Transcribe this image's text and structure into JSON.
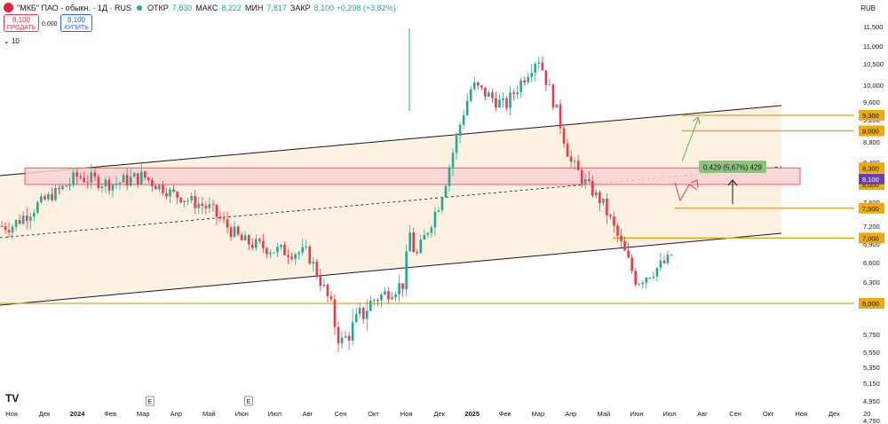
{
  "header": {
    "title": "\"МКБ\" ПАО - обыкн. · 1Д · RUS",
    "ohlc": [
      {
        "k": "ОТКР",
        "v": "7,830"
      },
      {
        "k": "МАКС",
        "v": "8,222"
      },
      {
        "k": "МИН",
        "v": "7,817"
      },
      {
        "k": "ЗАКР",
        "v": "8,100 +0,298 (+3,82%)"
      }
    ],
    "currency": "RUB"
  },
  "trade": {
    "sell_price": "8,100",
    "sell_label": "ПРОДАТЬ",
    "spread": "0,000",
    "buy_price": "8,100",
    "buy_label": "КУПИТЬ"
  },
  "indicator": "10",
  "branding": "TV",
  "colors": {
    "up": "#22ab94",
    "down": "#f23645",
    "channel_fill": "#fdeedd",
    "zone_fill": "#f9d1d3",
    "level": "#e5a21d",
    "label_bg": "#f2a900",
    "last_bg": "#6a3fb0",
    "measure_bg": "#8fc27e",
    "arrow_green": "#4caf50",
    "arrow_red": "#f23645"
  },
  "chart_data": {
    "type": "candlestick",
    "title": "\"МКБ\" ПАО - обыкн. · 1Д · RUS",
    "ylabel": "RUB",
    "ylim": [
      4500,
      12000
    ],
    "y_ticks": [
      11500,
      11000,
      10500,
      10000,
      9600,
      9200,
      8800,
      8400,
      8000,
      7600,
      7200,
      6900,
      6600,
      6300,
      6000,
      5750,
      5550,
      5350,
      5150,
      4950,
      4790
    ],
    "y_tick_labels": [
      "11,500",
      "11,000",
      "10,500",
      "10,000",
      "9,600",
      "9,200",
      "8,800",
      "8,400",
      "8,000",
      "7,600",
      "7,200",
      "6,900",
      "6,600",
      "6,300",
      "6,000",
      "5,750",
      "5,550",
      "5,350",
      "5,150",
      "4,950",
      "4,790"
    ],
    "x_tick_labels": [
      "Ноя",
      "Дек",
      "2024",
      "Фев",
      "Мар",
      "Апр",
      "Май",
      "Июн",
      "Июл",
      "Авг",
      "Сен",
      "Окт",
      "Ноя",
      "Дек",
      "2025",
      "Фев",
      "Мар",
      "Апр",
      "Май",
      "Июн",
      "Июл",
      "Авг",
      "Сен",
      "Окт",
      "Ноя",
      "Дек",
      "20"
    ],
    "events": [
      {
        "month": "Апр",
        "label": "E"
      },
      {
        "month": "Июл",
        "label": "E"
      }
    ],
    "price_path": [
      [
        "Ноя",
        7200
      ],
      [
        "Дек",
        7650
      ],
      [
        "2024",
        8150
      ],
      [
        "Фев",
        8000
      ],
      [
        "Мар",
        8150
      ],
      [
        "Апр",
        7750
      ],
      [
        "Май",
        7500
      ],
      [
        "Июн",
        6950
      ],
      [
        "Июл",
        6800
      ],
      [
        "Авг",
        6750
      ],
      [
        "Сен",
        5650
      ],
      [
        "Окт",
        6050
      ],
      [
        "Ноя",
        6300
      ],
      [
        "Дек",
        7600
      ],
      [
        "2025",
        10000
      ],
      [
        "Фев",
        9500
      ],
      [
        "Мар",
        10700
      ],
      [
        "Апр",
        8400
      ],
      [
        "Май",
        7550
      ],
      [
        "Июн",
        6300
      ],
      [
        "Июл",
        6650
      ],
      [
        "Авг",
        8100
      ]
    ],
    "levels": [
      {
        "price": 9300,
        "label": "9,300"
      },
      {
        "price": 9000,
        "label": "9,000"
      },
      {
        "price": 8300,
        "label": "8,300"
      },
      {
        "price": 8000,
        "label": "8,000"
      },
      {
        "price": 7500,
        "label": "7,500"
      },
      {
        "price": 7000,
        "label": "7,000"
      },
      {
        "price": 6000,
        "label": "6,000"
      }
    ],
    "last_price": {
      "price": 8100,
      "label": "8,100"
    },
    "measure_label": "0,429 (5,67%) 429"
  }
}
